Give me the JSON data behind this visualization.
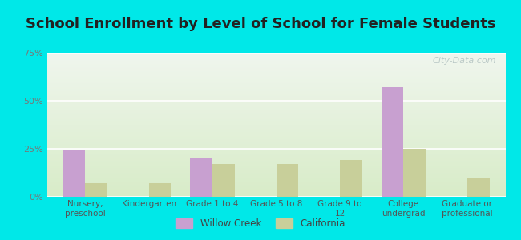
{
  "title": "School Enrollment by Level of School for Female Students",
  "categories": [
    "Nursery,\npreschool",
    "Kindergarten",
    "Grade 1 to 4",
    "Grade 5 to 8",
    "Grade 9 to\n12",
    "College\nundergrad",
    "Graduate or\nprofessional"
  ],
  "willow_creek": [
    24.0,
    0.0,
    20.0,
    0.0,
    0.0,
    57.0,
    0.0
  ],
  "california": [
    7.0,
    7.0,
    17.0,
    17.0,
    19.0,
    25.0,
    10.0
  ],
  "willow_color": "#c8a0d0",
  "california_color": "#c8cf9a",
  "bg_outer": "#00e8e8",
  "ylim": [
    0,
    75
  ],
  "yticks": [
    0,
    25,
    50,
    75
  ],
  "ytick_labels": [
    "0%",
    "25%",
    "50%",
    "75%"
  ],
  "title_fontsize": 13,
  "legend_labels": [
    "Willow Creek",
    "California"
  ],
  "bar_width": 0.35,
  "watermark": "City-Data.com",
  "grad_top": "#f0f6ee",
  "grad_bottom": "#d8ecc8"
}
